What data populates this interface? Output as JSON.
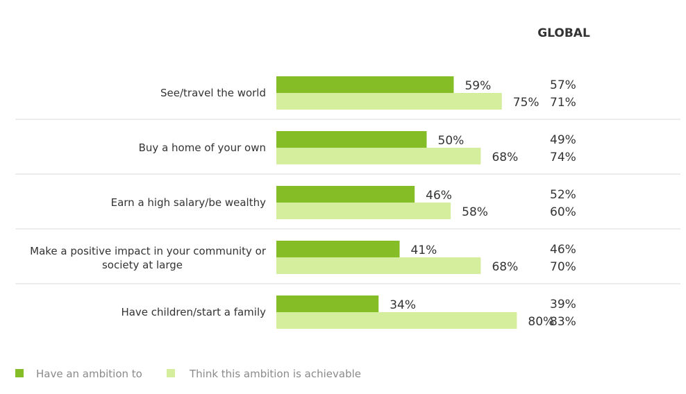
{
  "chart_data": {
    "type": "bar",
    "orientation": "horizontal",
    "categories": [
      [
        "See/travel the world"
      ],
      [
        "Buy a home of your own"
      ],
      [
        "Earn a high salary/be wealthy"
      ],
      [
        "Make a positive impact in your community or",
        "society at large"
      ],
      [
        "Have children/start a family"
      ]
    ],
    "series": [
      {
        "name": "Have an ambition to",
        "color": "#84bd25",
        "values": [
          59,
          50,
          46,
          41,
          34
        ],
        "labels": [
          "59%",
          "50%",
          "46%",
          "41%",
          "34%"
        ]
      },
      {
        "name": "Think this ambition is achievable",
        "color": "#d4ee9e",
        "values": [
          75,
          68,
          58,
          68,
          80
        ],
        "labels": [
          "75%",
          "68%",
          "58%",
          "68%",
          "80%"
        ]
      }
    ],
    "global": {
      "title": "GLOBAL",
      "ambition": [
        "57%",
        "49%",
        "52%",
        "46%",
        "39%"
      ],
      "achievable": [
        "71%",
        "74%",
        "60%",
        "70%",
        "83%"
      ]
    },
    "xlim": [
      0,
      100
    ],
    "grid": false,
    "legend_position": "bottom-left"
  }
}
